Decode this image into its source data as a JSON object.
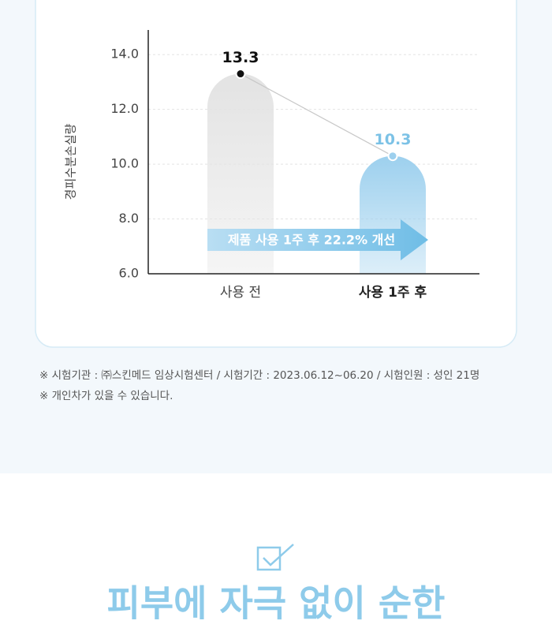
{
  "chart_data": {
    "type": "bar",
    "y_label": "경피수분손실량",
    "categories": [
      "사용 전",
      "사용 1주 후"
    ],
    "values": [
      13.3,
      10.3
    ],
    "colors": [
      "#e3e3e3",
      "#9dd0ee"
    ],
    "value_label_colors": [
      "#111111",
      "#7cc2e6"
    ],
    "ylim": [
      6,
      14.9
    ],
    "yticks": [
      {
        "value": 6,
        "label": "6.0"
      },
      {
        "value": 8,
        "label": "8.0"
      },
      {
        "value": 10,
        "label": "10.0"
      },
      {
        "value": 12,
        "label": "12.0"
      },
      {
        "value": 14,
        "label": "14.0"
      }
    ],
    "grid": true,
    "annotation": "제품 사용 1주 후 22.2% 개선"
  },
  "notes": [
    "※ 시험기관 : ㈜스킨메드 임상시험센터 / 시험기간 : 2023.06.12~06.20 / 시험인원 : 성인 21명",
    "※ 개인차가 있을 수 있습니다."
  ],
  "section": {
    "heading": "피부에 자극 없이 순한"
  }
}
